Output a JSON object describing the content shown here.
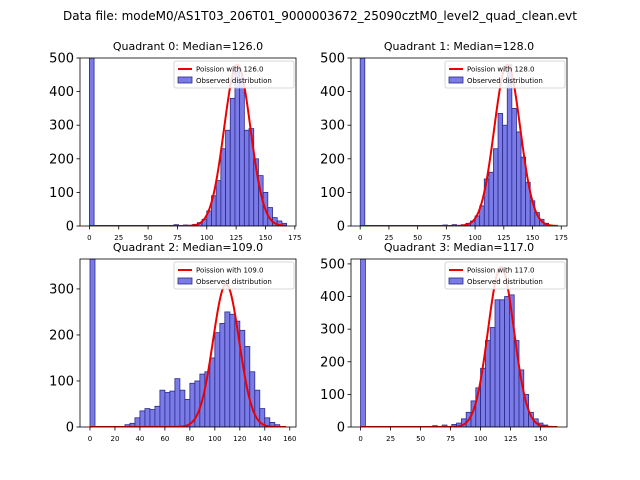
{
  "figure": {
    "suptitle": "Data file: modeM0/AS1T03_206T01_9000003672_25090cztM0_level2_quad_clean.evt"
  },
  "colors": {
    "poisson": "#ee0000",
    "hist_fill": "#7b7be8",
    "hist_edge": "#2a2a8a",
    "axis": "#000000",
    "background": "#ffffff"
  },
  "chart_data": [
    {
      "type": "bar",
      "title": "Quadrant 0: Median=126.0",
      "bin_width": 4,
      "xlim": [
        -8,
        176
      ],
      "ylim": [
        0,
        500
      ],
      "xticks": [
        0,
        25,
        50,
        75,
        100,
        125,
        150,
        175
      ],
      "yticks": [
        0,
        100,
        200,
        300,
        400,
        500
      ],
      "legend": [
        "Poission with 126.0",
        "Observed distribution"
      ],
      "legend_loc": "upper right",
      "poisson_mean": 126.0,
      "poisson_peak": 480,
      "bins": [
        {
          "x": 0,
          "count": 500
        },
        {
          "x": 72,
          "count": 4
        },
        {
          "x": 80,
          "count": 3
        },
        {
          "x": 88,
          "count": 5
        },
        {
          "x": 92,
          "count": 10
        },
        {
          "x": 96,
          "count": 20
        },
        {
          "x": 100,
          "count": 45
        },
        {
          "x": 104,
          "count": 90
        },
        {
          "x": 108,
          "count": 135
        },
        {
          "x": 112,
          "count": 230
        },
        {
          "x": 116,
          "count": 285
        },
        {
          "x": 120,
          "count": 380
        },
        {
          "x": 124,
          "count": 470
        },
        {
          "x": 128,
          "count": 440
        },
        {
          "x": 132,
          "count": 285
        },
        {
          "x": 136,
          "count": 290
        },
        {
          "x": 140,
          "count": 200
        },
        {
          "x": 144,
          "count": 150
        },
        {
          "x": 148,
          "count": 100
        },
        {
          "x": 152,
          "count": 55
        },
        {
          "x": 156,
          "count": 25
        },
        {
          "x": 160,
          "count": 15
        },
        {
          "x": 164,
          "count": 8
        }
      ]
    },
    {
      "type": "bar",
      "title": "Quadrant 1: Median=128.0",
      "bin_width": 4,
      "xlim": [
        -8,
        180
      ],
      "ylim": [
        0,
        500
      ],
      "xticks": [
        0,
        25,
        50,
        75,
        100,
        125,
        150,
        175
      ],
      "yticks": [
        0,
        100,
        200,
        300,
        400,
        500
      ],
      "legend": [
        "Poission with 128.0",
        "Observed distribution"
      ],
      "legend_loc": "upper right",
      "poisson_mean": 128.0,
      "poisson_peak": 480,
      "bins": [
        {
          "x": 0,
          "count": 510
        },
        {
          "x": 72,
          "count": 3
        },
        {
          "x": 80,
          "count": 4
        },
        {
          "x": 88,
          "count": 4
        },
        {
          "x": 92,
          "count": 8
        },
        {
          "x": 96,
          "count": 15
        },
        {
          "x": 100,
          "count": 30
        },
        {
          "x": 104,
          "count": 60
        },
        {
          "x": 108,
          "count": 140
        },
        {
          "x": 112,
          "count": 160
        },
        {
          "x": 116,
          "count": 230
        },
        {
          "x": 120,
          "count": 335
        },
        {
          "x": 124,
          "count": 300
        },
        {
          "x": 128,
          "count": 480
        },
        {
          "x": 132,
          "count": 350
        },
        {
          "x": 136,
          "count": 280
        },
        {
          "x": 140,
          "count": 205
        },
        {
          "x": 144,
          "count": 130
        },
        {
          "x": 148,
          "count": 75
        },
        {
          "x": 152,
          "count": 40
        },
        {
          "x": 156,
          "count": 20
        },
        {
          "x": 160,
          "count": 8
        }
      ]
    },
    {
      "type": "bar",
      "title": "Quadrant 2: Median=109.0",
      "bin_width": 4,
      "xlim": [
        -8,
        165
      ],
      "ylim": [
        0,
        365
      ],
      "xticks": [
        0,
        20,
        40,
        60,
        80,
        100,
        120,
        140,
        160
      ],
      "yticks": [
        0,
        100,
        200,
        300
      ],
      "legend": [
        "Poission with 109.0",
        "Observed distribution"
      ],
      "legend_loc": "upper right",
      "poisson_mean": 109.0,
      "poisson_peak": 310,
      "bins": [
        {
          "x": 0,
          "count": 365
        },
        {
          "x": 28,
          "count": 5
        },
        {
          "x": 32,
          "count": 8
        },
        {
          "x": 36,
          "count": 20
        },
        {
          "x": 40,
          "count": 35
        },
        {
          "x": 44,
          "count": 40
        },
        {
          "x": 48,
          "count": 38
        },
        {
          "x": 52,
          "count": 45
        },
        {
          "x": 56,
          "count": 80
        },
        {
          "x": 60,
          "count": 75
        },
        {
          "x": 64,
          "count": 78
        },
        {
          "x": 68,
          "count": 105
        },
        {
          "x": 72,
          "count": 80
        },
        {
          "x": 76,
          "count": 60
        },
        {
          "x": 80,
          "count": 95
        },
        {
          "x": 84,
          "count": 100
        },
        {
          "x": 88,
          "count": 115
        },
        {
          "x": 92,
          "count": 120
        },
        {
          "x": 96,
          "count": 150
        },
        {
          "x": 100,
          "count": 205
        },
        {
          "x": 104,
          "count": 225
        },
        {
          "x": 108,
          "count": 250
        },
        {
          "x": 112,
          "count": 245
        },
        {
          "x": 116,
          "count": 230
        },
        {
          "x": 120,
          "count": 210
        },
        {
          "x": 124,
          "count": 175
        },
        {
          "x": 128,
          "count": 120
        },
        {
          "x": 132,
          "count": 80
        },
        {
          "x": 136,
          "count": 40
        },
        {
          "x": 140,
          "count": 20
        },
        {
          "x": 144,
          "count": 10
        },
        {
          "x": 148,
          "count": 5
        }
      ]
    },
    {
      "type": "bar",
      "title": "Quadrant 3: Median=117.0",
      "bin_width": 4,
      "xlim": [
        -8,
        172
      ],
      "ylim": [
        0,
        515
      ],
      "xticks": [
        0,
        25,
        50,
        75,
        100,
        125,
        150
      ],
      "yticks": [
        0,
        100,
        200,
        300,
        400,
        500
      ],
      "legend": [
        "Poission with 117.0",
        "Observed distribution"
      ],
      "legend_loc": "upper right",
      "poisson_mean": 117.0,
      "poisson_peak": 490,
      "bins": [
        {
          "x": 0,
          "count": 515
        },
        {
          "x": 60,
          "count": 4
        },
        {
          "x": 68,
          "count": 6
        },
        {
          "x": 76,
          "count": 8
        },
        {
          "x": 80,
          "count": 12
        },
        {
          "x": 84,
          "count": 25
        },
        {
          "x": 88,
          "count": 45
        },
        {
          "x": 92,
          "count": 80
        },
        {
          "x": 96,
          "count": 120
        },
        {
          "x": 100,
          "count": 180
        },
        {
          "x": 104,
          "count": 265
        },
        {
          "x": 108,
          "count": 305
        },
        {
          "x": 112,
          "count": 390
        },
        {
          "x": 116,
          "count": 390
        },
        {
          "x": 120,
          "count": 400
        },
        {
          "x": 124,
          "count": 405
        },
        {
          "x": 128,
          "count": 265
        },
        {
          "x": 132,
          "count": 175
        },
        {
          "x": 136,
          "count": 100
        },
        {
          "x": 140,
          "count": 45
        },
        {
          "x": 144,
          "count": 25
        },
        {
          "x": 148,
          "count": 12
        },
        {
          "x": 152,
          "count": 6
        }
      ]
    }
  ]
}
